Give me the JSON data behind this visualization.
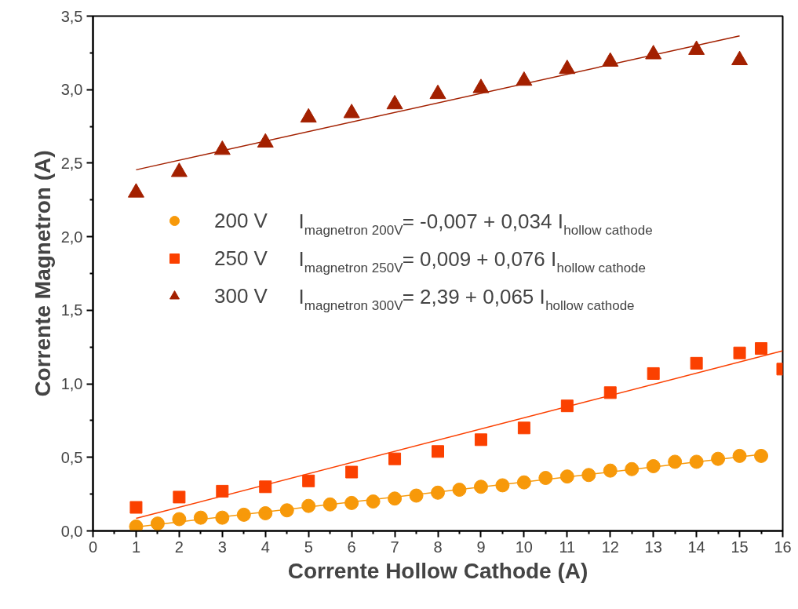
{
  "chart_data": {
    "type": "scatter",
    "xlabel": "Corrente Hollow Cathode (A)",
    "ylabel": "Corrente Magnetron (A)",
    "xlim": [
      0,
      16
    ],
    "xticks": [
      0,
      1,
      2,
      3,
      4,
      5,
      6,
      7,
      8,
      9,
      10,
      11,
      12,
      13,
      14,
      15,
      16
    ],
    "ylim": [
      0,
      3.5
    ],
    "yticks": [
      {
        "value": 0,
        "label": "0,0"
      },
      {
        "value": 0.5,
        "label": "0,5"
      },
      {
        "value": 1,
        "label": "1,0"
      },
      {
        "value": 1.5,
        "label": "1,5"
      },
      {
        "value": 2,
        "label": "2,0"
      },
      {
        "value": 2.5,
        "label": "2,5"
      },
      {
        "value": 3,
        "label": "3,0"
      },
      {
        "value": 3.5,
        "label": "3,5"
      }
    ],
    "grid": false,
    "legend": "left",
    "series": [
      {
        "name": "200 V",
        "color": "#f7990a",
        "marker": "circle",
        "x": [
          1,
          1.5,
          2,
          2.5,
          3,
          3.5,
          4,
          4.5,
          5,
          5.5,
          6,
          6.5,
          7,
          7.5,
          8,
          8.5,
          9,
          9.5,
          10,
          10.5,
          11,
          11.5,
          12,
          12.5,
          13,
          13.5,
          14,
          14.5,
          15,
          15.5
        ],
        "values": [
          0.03,
          0.05,
          0.08,
          0.09,
          0.09,
          0.11,
          0.12,
          0.14,
          0.17,
          0.18,
          0.19,
          0.2,
          0.22,
          0.24,
          0.26,
          0.28,
          0.3,
          0.31,
          0.33,
          0.36,
          0.37,
          0.38,
          0.41,
          0.42,
          0.44,
          0.47,
          0.47,
          0.49,
          0.51,
          0.51
        ]
      },
      {
        "name": "250 V",
        "color": "#fb4000",
        "marker": "square",
        "x": [
          1,
          2,
          3,
          4,
          5,
          6,
          7,
          8,
          9,
          10,
          11,
          12,
          13,
          14,
          15,
          15.5,
          16
        ],
        "values": [
          0.16,
          0.23,
          0.27,
          0.3,
          0.34,
          0.4,
          0.49,
          0.54,
          0.62,
          0.7,
          0.85,
          0.94,
          1.07,
          1.14,
          1.21,
          1.24,
          1.1
        ]
      },
      {
        "name": "300 V",
        "color": "#a32000",
        "marker": "triangle",
        "x": [
          1,
          2,
          3,
          4,
          5,
          6,
          7,
          8,
          9,
          10,
          11,
          12,
          13,
          14,
          15
        ],
        "values": [
          2.3,
          2.44,
          2.59,
          2.64,
          2.81,
          2.84,
          2.9,
          2.97,
          3.01,
          3.06,
          3.14,
          3.19,
          3.24,
          3.27,
          3.2
        ]
      },
      {
        "type": "line",
        "color": "#f7990a",
        "x": [
          1,
          15.5
        ],
        "values": [
          0.027,
          0.52
        ]
      },
      {
        "type": "line",
        "color": "#fb4000",
        "x": [
          1,
          16
        ],
        "values": [
          0.085,
          1.225
        ]
      },
      {
        "type": "line",
        "color": "#a32000",
        "x": [
          1,
          15
        ],
        "values": [
          2.455,
          3.365
        ]
      }
    ],
    "annotations": [
      "I$_{magnetron 200V}$= -0,007 + 0,034 I$_{hollow cathode}$",
      "I$_{magnetron 250V}$= 0,009 + 0,076 I$_{hollow cathode}$",
      "I$_{magnetron 300V}$= 2,39 + 0,065 I$_{hollow cathode}$"
    ]
  }
}
